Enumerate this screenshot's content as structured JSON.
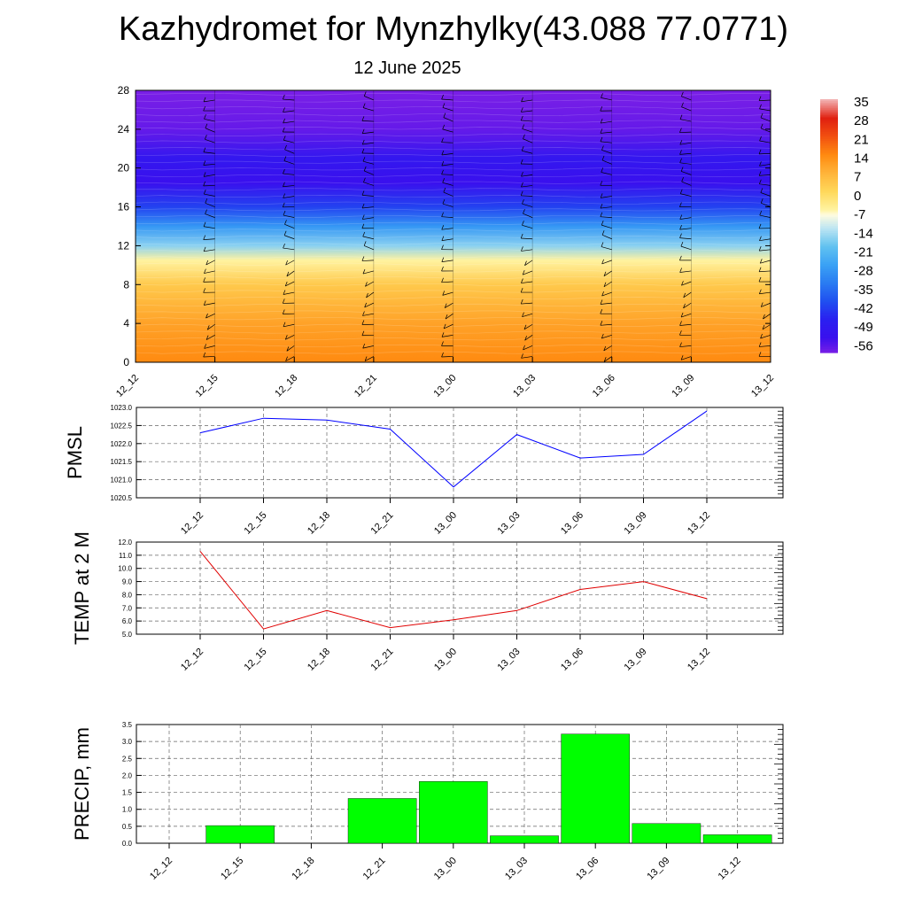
{
  "title": "Kazhydromet for Mynzhylky(43.088 77.0771)",
  "subtitle": "12 June 2025",
  "categories": [
    "12_12",
    "12_15",
    "12_18",
    "12_21",
    "13_00",
    "13_03",
    "13_06",
    "13_09",
    "13_12"
  ],
  "colors": {
    "pmsl_line": "#0000ff",
    "temp_line": "#e00000",
    "precip_bar": "#00ff00",
    "grid": "#666666"
  },
  "chart_data": [
    {
      "type": "heatmap",
      "name": "temperature cross-section with wind barbs",
      "x": [
        "12_12",
        "12_15",
        "12_18",
        "12_21",
        "13_00",
        "13_03",
        "13_06",
        "13_09",
        "13_12"
      ],
      "y_ticks": [
        0,
        4,
        8,
        12,
        16,
        20,
        24,
        28
      ],
      "ylim": [
        0,
        28
      ],
      "colorbar_labels": [
        35,
        28,
        21,
        14,
        7,
        0,
        -7,
        -14,
        -21,
        -28,
        -35,
        -42,
        -49,
        -56
      ],
      "colormap": "white-red-orange-yellow-lightblue-blue-purple",
      "levels_profile": [
        {
          "level": 0,
          "value": 14
        },
        {
          "level": 4,
          "value": 10
        },
        {
          "level": 8,
          "value": 3
        },
        {
          "level": 10.5,
          "value": -7
        },
        {
          "level": 12,
          "value": -18
        },
        {
          "level": 14,
          "value": -30
        },
        {
          "level": 16,
          "value": -44
        },
        {
          "level": 18.5,
          "value": -56
        },
        {
          "level": 21,
          "value": -53
        },
        {
          "level": 24,
          "value": -60
        },
        {
          "level": 28,
          "value": -62
        }
      ]
    },
    {
      "type": "line",
      "ylabel": "PMSL",
      "categories": [
        "12_12",
        "12_15",
        "12_18",
        "12_21",
        "13_00",
        "13_03",
        "13_06",
        "13_09",
        "13_12"
      ],
      "values": [
        1022.3,
        1022.7,
        1022.65,
        1022.4,
        1020.8,
        1022.25,
        1021.6,
        1021.7,
        1022.9
      ],
      "ylim": [
        1020.5,
        1023.0
      ],
      "yticks": [
        "1020.5",
        "1021.0",
        "1021.5",
        "1022.0",
        "1022.5",
        "1023.0"
      ],
      "grid": true
    },
    {
      "type": "line",
      "ylabel": "TEMP at 2 M",
      "categories": [
        "12_12",
        "12_15",
        "12_18",
        "12_21",
        "13_00",
        "13_03",
        "13_06",
        "13_09",
        "13_12"
      ],
      "values": [
        11.3,
        5.4,
        6.8,
        5.5,
        6.1,
        6.8,
        8.4,
        9.0,
        7.7
      ],
      "ylim": [
        5.0,
        12.0
      ],
      "yticks": [
        "5.0",
        "6.0",
        "7.0",
        "8.0",
        "9.0",
        "10.0",
        "11.0",
        "12.0"
      ],
      "grid": true
    },
    {
      "type": "bar",
      "ylabel": "PRECIP, mm",
      "categories": [
        "12_12",
        "12_15",
        "12_18",
        "12_21",
        "13_00",
        "13_03",
        "13_06",
        "13_09",
        "13_12"
      ],
      "values": [
        0,
        0.52,
        0,
        1.32,
        1.82,
        0.22,
        3.22,
        0.58,
        0.25
      ],
      "ylim": [
        0,
        3.5
      ],
      "yticks": [
        "0.0",
        "0.5",
        "1.0",
        "1.5",
        "2.0",
        "2.5",
        "3.0",
        "3.5"
      ],
      "grid": true
    }
  ]
}
